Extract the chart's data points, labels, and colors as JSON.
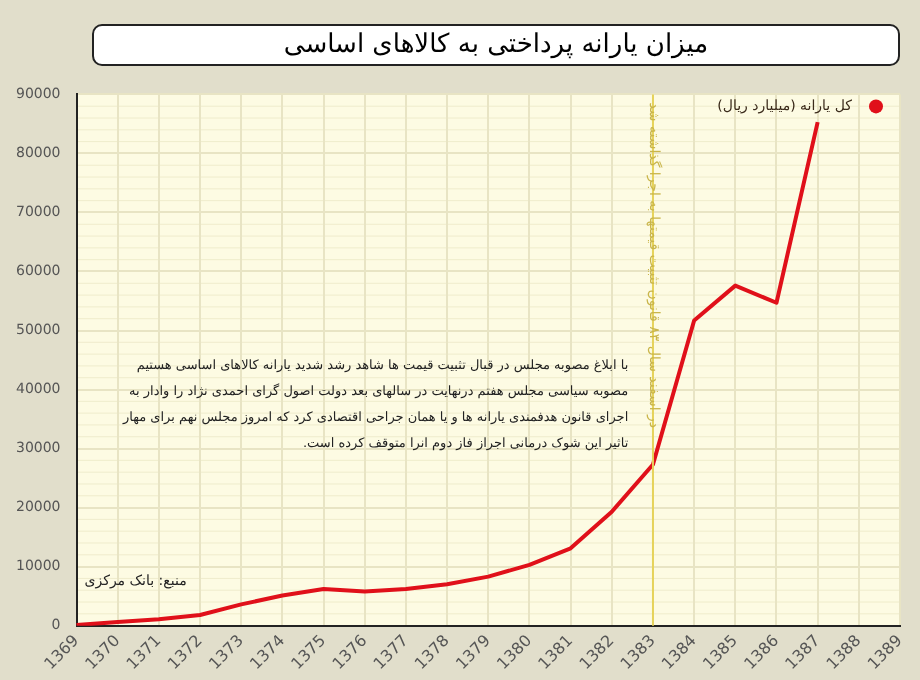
{
  "chart_data": {
    "type": "line",
    "title": "میزان یارانه پرداختی به کالاهای اساسی",
    "categories": [
      "1369",
      "1370",
      "1371",
      "1372",
      "1373",
      "1374",
      "1375",
      "1376",
      "1377",
      "1378",
      "1379",
      "1380",
      "1381",
      "1382",
      "1383",
      "1384",
      "1385",
      "1386",
      "1387",
      "1388",
      "1389"
    ],
    "series": [
      {
        "name": "کل یارانه (میلیارد ریال)",
        "color": "#e0101a",
        "values": [
          100,
          600,
          1100,
          1800,
          3600,
          5100,
          6200,
          5800,
          6200,
          7000,
          8300,
          10300,
          13100,
          19300,
          27300,
          51700,
          57600,
          54700,
          85300,
          null,
          null
        ]
      }
    ],
    "ylim": [
      0,
      90000
    ],
    "yticks": [
      0,
      10000,
      20000,
      30000,
      40000,
      50000,
      60000,
      70000,
      80000,
      90000
    ],
    "grid": true,
    "legend": "top right",
    "marker": "none",
    "ref_lines": [
      {
        "axis": "x",
        "value": "1383",
        "label": "در اسفند سال ۸۳ قانون تثبیت قیمتها به اجرا گذاشته شد",
        "color": "#e6d35a"
      }
    ],
    "annotations": [
      "منبع: بانک مرکزی",
      "با ابلاغ مصوبه مجلس در قبال تثبیت قیمت ها شاهد رشد شدید یارانه کالاهای اساسی هستیم",
      "مصوبه سیاسی مجلس هفتم درنهایت در سالهای بعد دولت اصول گرای احمدی نژاد را وادار به",
      "اجرای قانون هدفمندی یارانه ها و یا همان جراحی اقتصادی کرد که امروز مجلس نهم برای مهار",
      "تاثیر این شوک درمانی اجراز فاز دوم انرا متوقف کرده است."
    ]
  }
}
